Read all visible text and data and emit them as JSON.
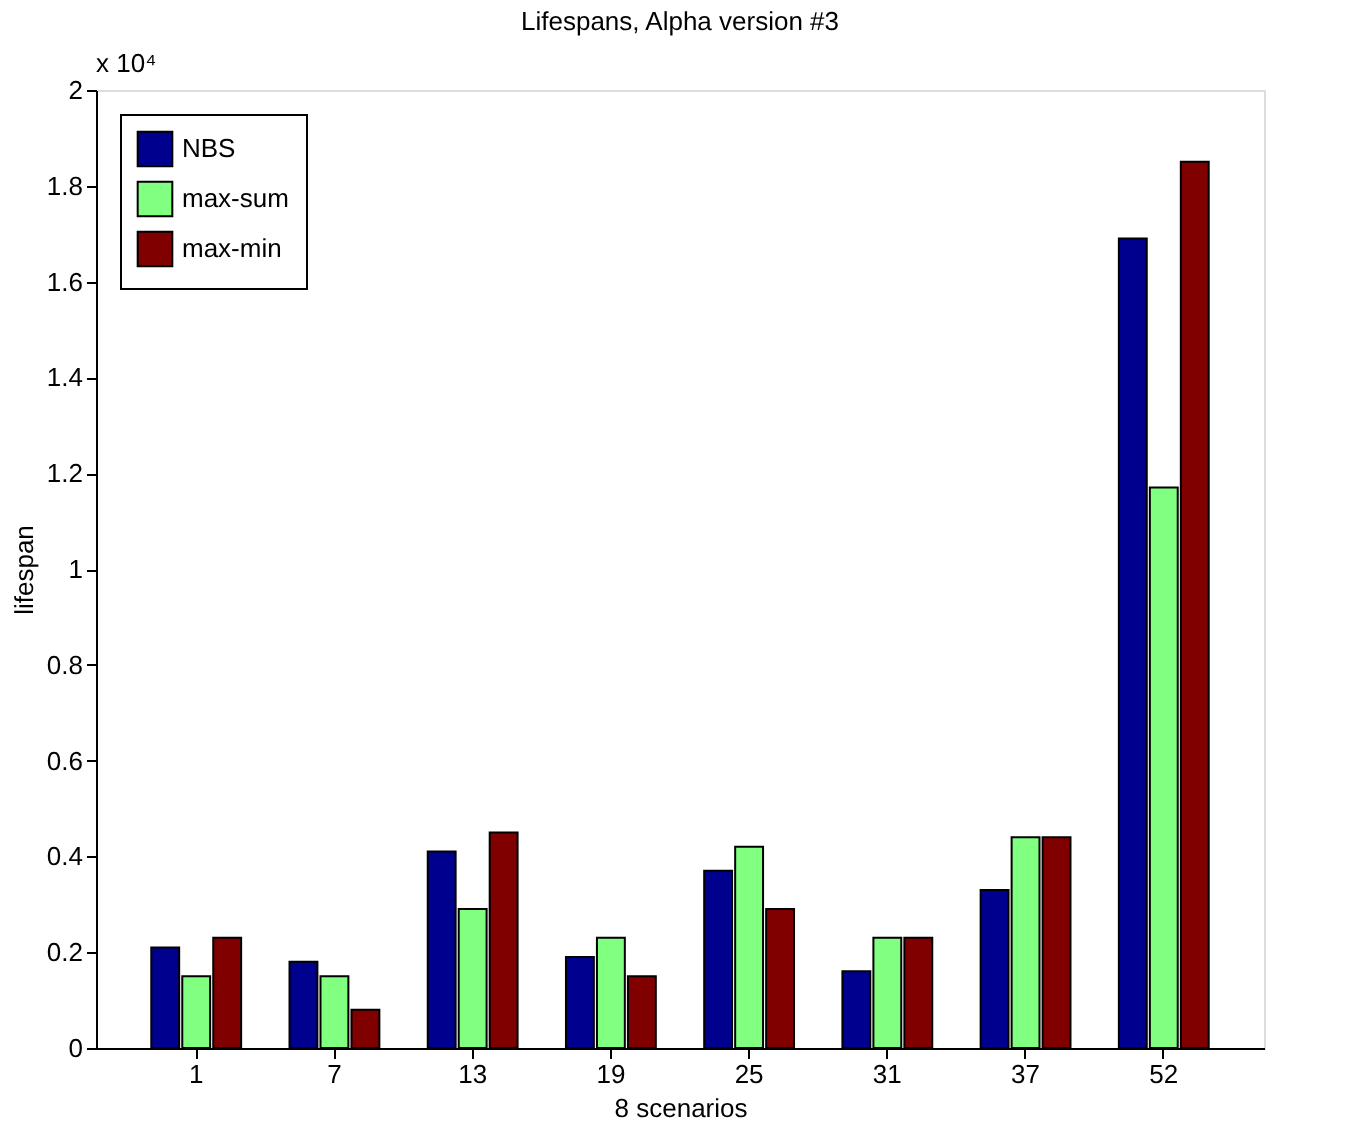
{
  "chart_data": {
    "type": "bar",
    "title": "Lifespans, Alpha version #3",
    "xlabel": "8 scenarios",
    "ylabel": "lifespan",
    "categories": [
      "1",
      "7",
      "13",
      "19",
      "25",
      "31",
      "37",
      "52"
    ],
    "series": [
      {
        "name": "NBS",
        "color": "#00008f",
        "values": [
          0.21,
          0.18,
          0.41,
          0.19,
          0.37,
          0.16,
          0.33,
          1.69
        ]
      },
      {
        "name": "max-sum",
        "color": "#80ff80",
        "values": [
          0.15,
          0.15,
          0.29,
          0.23,
          0.42,
          0.23,
          0.44,
          1.17
        ]
      },
      {
        "name": "max-min",
        "color": "#800000",
        "values": [
          0.23,
          0.08,
          0.45,
          0.15,
          0.29,
          0.23,
          0.44,
          1.85
        ]
      }
    ],
    "ylim": [
      0,
      2
    ],
    "yticks": [
      0,
      0.2,
      0.4,
      0.6,
      0.8,
      1,
      1.2,
      1.4,
      1.6,
      1.8,
      2
    ],
    "annotations": [
      "x 10⁴"
    ],
    "grid": false,
    "legend": "top left"
  }
}
